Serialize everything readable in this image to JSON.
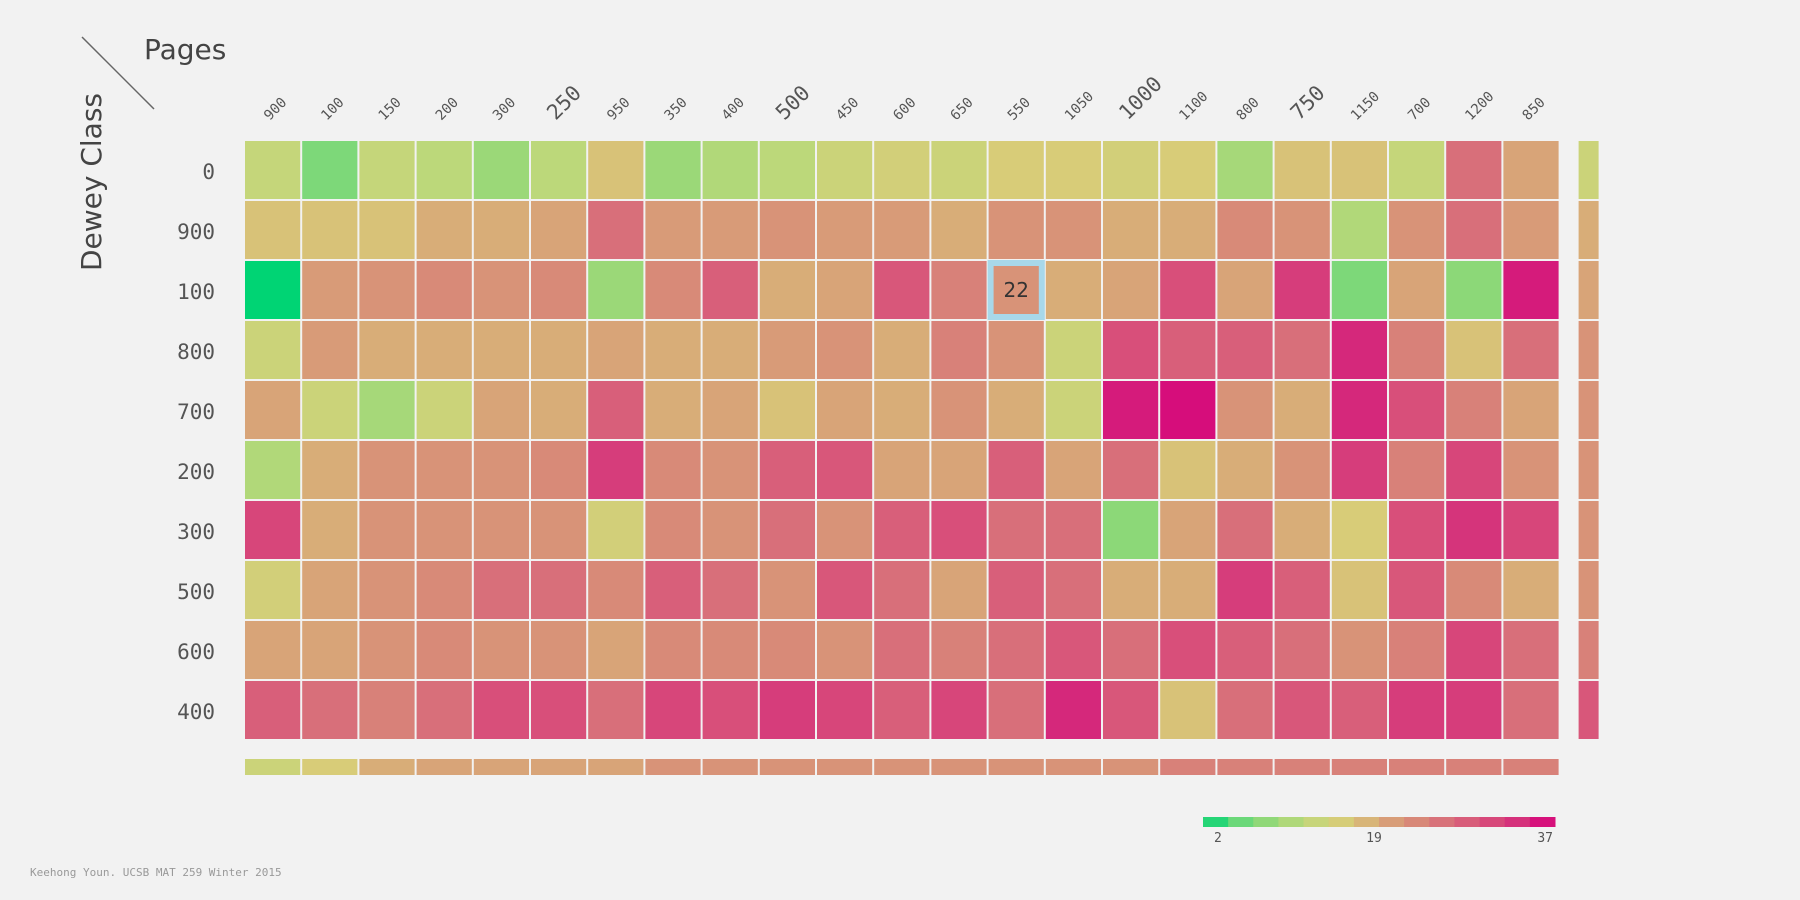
{
  "chart_data": {
    "type": "heatmap",
    "corner_labels": {
      "x_axis": "Pages",
      "y_axis": "Dewey Class"
    },
    "columns": [
      "900",
      "100",
      "150",
      "200",
      "300",
      "250",
      "950",
      "350",
      "400",
      "500",
      "450",
      "600",
      "650",
      "550",
      "1050",
      "1000",
      "1100",
      "800",
      "750",
      "1150",
      "700",
      "1200",
      "850"
    ],
    "emphasized_columns": [
      "250",
      "500",
      "1000",
      "750"
    ],
    "rows": [
      "0",
      "900",
      "100",
      "800",
      "700",
      "200",
      "300",
      "500",
      "600",
      "400"
    ],
    "values": [
      [
        13,
        7,
        13,
        12,
        9,
        12,
        17,
        9,
        11,
        12,
        14,
        15,
        14,
        16,
        16,
        15,
        16,
        10,
        17,
        17,
        13,
        26,
        20
      ],
      [
        17,
        17,
        17,
        19,
        19,
        20,
        26,
        21,
        21,
        22,
        21,
        21,
        19,
        22,
        22,
        19,
        19,
        23,
        22,
        11,
        22,
        26,
        21
      ],
      [
        2,
        21,
        22,
        23,
        22,
        23,
        9,
        23,
        28,
        19,
        20,
        29,
        24,
        22,
        19,
        20,
        30,
        20,
        32,
        7,
        20,
        8,
        35
      ],
      [
        14,
        21,
        19,
        19,
        19,
        19,
        20,
        19,
        19,
        21,
        22,
        19,
        24,
        22,
        14,
        30,
        28,
        28,
        26,
        34,
        24,
        17,
        26
      ],
      [
        20,
        14,
        10,
        14,
        20,
        19,
        28,
        19,
        20,
        17,
        20,
        19,
        22,
        19,
        14,
        35,
        36,
        22,
        19,
        34,
        30,
        24,
        20
      ],
      [
        11,
        19,
        22,
        22,
        22,
        23,
        32,
        23,
        22,
        28,
        29,
        20,
        20,
        28,
        20,
        26,
        17,
        19,
        22,
        32,
        24,
        31,
        22
      ],
      [
        31,
        19,
        22,
        22,
        22,
        22,
        15,
        23,
        22,
        26,
        22,
        28,
        30,
        26,
        26,
        8,
        20,
        26,
        19,
        16,
        30,
        33,
        31
      ],
      [
        15,
        20,
        22,
        23,
        26,
        26,
        23,
        28,
        26,
        22,
        29,
        26,
        20,
        28,
        26,
        19,
        19,
        32,
        28,
        17,
        29,
        23,
        19
      ],
      [
        20,
        20,
        22,
        23,
        22,
        22,
        20,
        23,
        23,
        23,
        22,
        26,
        24,
        26,
        29,
        26,
        30,
        28,
        26,
        22,
        24,
        31,
        26
      ],
      [
        28,
        26,
        24,
        26,
        30,
        30,
        26,
        31,
        30,
        32,
        31,
        28,
        31,
        26,
        34,
        29,
        17,
        26,
        29,
        28,
        32,
        32,
        26
      ]
    ],
    "row_summary": [
      14,
      19,
      20,
      22,
      22,
      22,
      22,
      22,
      24,
      29
    ],
    "column_summary": [
      14,
      16,
      19,
      20,
      20,
      20,
      20,
      22,
      22,
      22,
      22,
      22,
      22,
      22,
      22,
      22,
      24,
      24,
      24,
      24,
      24,
      24,
      24
    ],
    "highlighted_cell": {
      "row": "100",
      "column": "550",
      "label": "22"
    },
    "colorscale": {
      "min": 2,
      "mid": 19,
      "max": 37,
      "labels": [
        "2",
        "19",
        "37"
      ],
      "stops": [
        "#00d474",
        "#67d879",
        "#9bd878",
        "#c2d87a",
        "#d8cc78",
        "#d8a878",
        "#d88a78",
        "#d86b7a",
        "#d84f7a",
        "#d52f7b",
        "#d6007b"
      ]
    },
    "highlight_color": "#a8d8ea"
  },
  "credit": "Keehong Youn. UCSB MAT 259 Winter 2015"
}
